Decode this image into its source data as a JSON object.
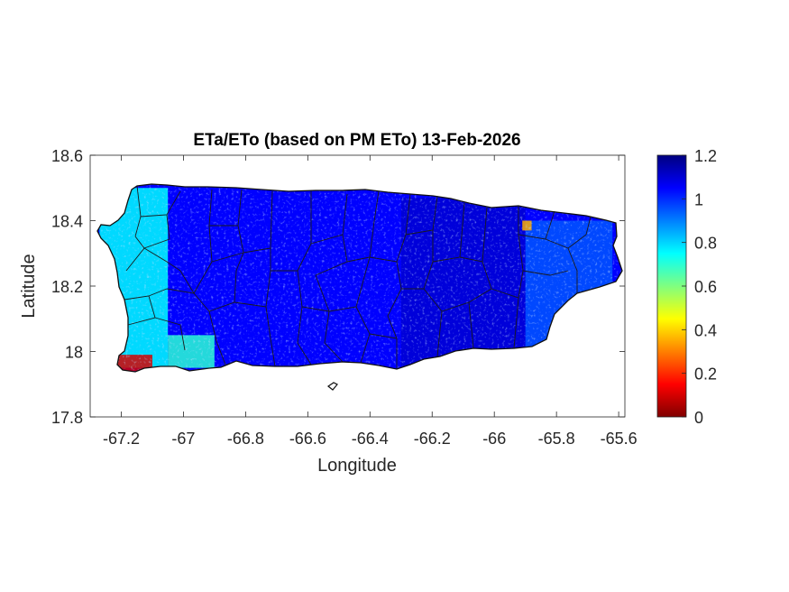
{
  "chart_data": {
    "type": "heatmap",
    "title": "ETa/ETo (based on PM ETo) 13-Feb-2026",
    "xlabel": "Longitude",
    "ylabel": "Latitude",
    "xlim": [
      -67.3,
      -65.58
    ],
    "ylim": [
      17.8,
      18.6
    ],
    "xticks": [
      -67.2,
      -67.0,
      -66.8,
      -66.6,
      -66.4,
      -66.2,
      -66.0,
      -65.8,
      -65.6
    ],
    "xtick_labels": [
      "-67.2",
      "-67",
      "-66.8",
      "-66.6",
      "-66.4",
      "-66.2",
      "-66",
      "-65.8",
      "-65.6"
    ],
    "yticks": [
      17.8,
      18.0,
      18.2,
      18.4,
      18.6
    ],
    "ytick_labels": [
      "17.8",
      "18",
      "18.2",
      "18.4",
      "18.6"
    ],
    "colorbar": {
      "colormap": "jet",
      "range": [
        0,
        1.2
      ],
      "ticks": [
        0,
        0.2,
        0.4,
        0.6,
        0.8,
        1.0,
        1.2
      ],
      "tick_labels": [
        "0",
        "0.2",
        "0.4",
        "0.6",
        "0.8",
        "1",
        "1.2"
      ]
    },
    "region_values": [
      {
        "lon_range": [
          -67.27,
          -67.05
        ],
        "lat_range": [
          17.95,
          18.5
        ],
        "approx_value": 0.75
      },
      {
        "lon_range": [
          -67.22,
          -67.1
        ],
        "lat_range": [
          17.94,
          17.99
        ],
        "approx_value": 0.1
      },
      {
        "lon_range": [
          -67.05,
          -66.9
        ],
        "lat_range": [
          17.95,
          18.05
        ],
        "approx_value": 0.7
      },
      {
        "lon_range": [
          -66.9,
          -66.3
        ],
        "lat_range": [
          17.95,
          18.48
        ],
        "approx_value": 1.05
      },
      {
        "lon_range": [
          -66.3,
          -65.9
        ],
        "lat_range": [
          17.95,
          18.47
        ],
        "approx_value": 1.1
      },
      {
        "lon_range": [
          -65.9,
          -65.62
        ],
        "lat_range": [
          18.0,
          18.4
        ],
        "approx_value": 0.95
      },
      {
        "lon_range": [
          -65.91,
          -65.88
        ],
        "lat_range": [
          18.37,
          18.4
        ],
        "approx_value": 0.35
      }
    ],
    "grid": false,
    "legend": "colorbar-right"
  }
}
